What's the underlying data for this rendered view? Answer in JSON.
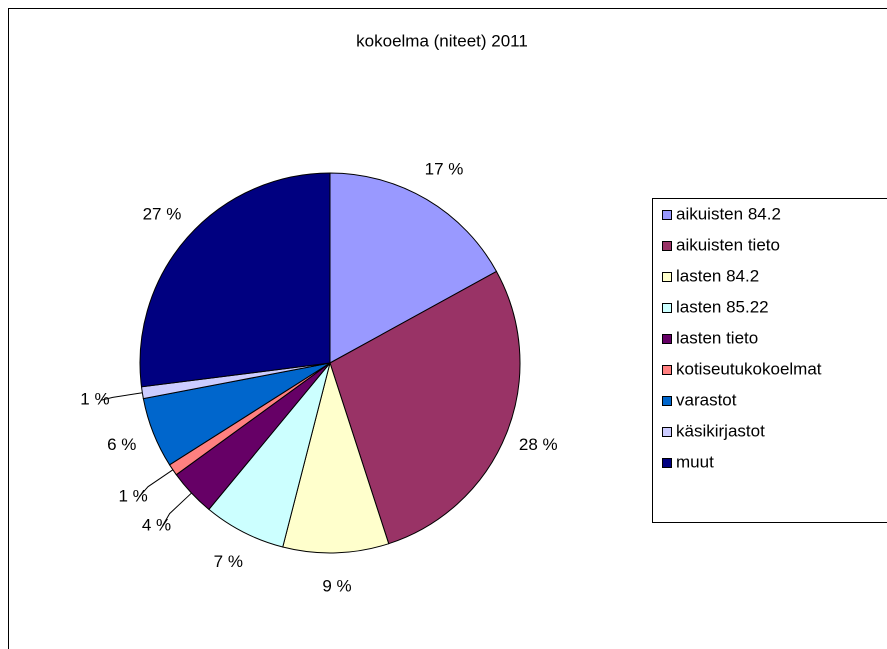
{
  "chart_data": {
    "type": "pie",
    "title": "kokoelma (niteet) 2011",
    "categories": [
      "aikuisten 84.2",
      "aikuisten tieto",
      "lasten 84.2",
      "lasten 85.22",
      "lasten tieto",
      "kotiseutukokoelmat",
      "varastot",
      "käsikirjastot",
      "muut"
    ],
    "values": [
      17,
      28,
      9,
      7,
      4,
      1,
      6,
      1,
      27
    ],
    "value_labels": [
      "17 %",
      "28 %",
      "9 %",
      "7 %",
      "4 %",
      "1 %",
      "6 %",
      "1 %",
      "27 %"
    ],
    "colors": [
      "#9999ff",
      "#993366",
      "#ffffcc",
      "#ccffff",
      "#660066",
      "#ff8080",
      "#0066cc",
      "#ccccff",
      "#000080"
    ],
    "legend": "right"
  }
}
